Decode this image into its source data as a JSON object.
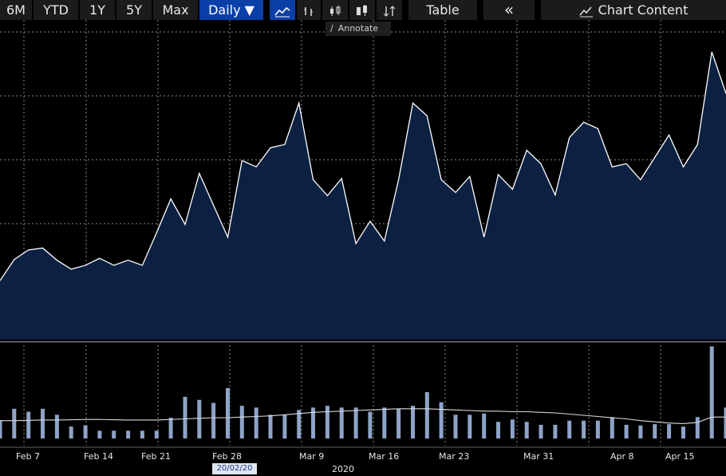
{
  "toolbar": {
    "range_6m": "6M",
    "range_ytd": "YTD",
    "range_1y": "1Y",
    "range_5y": "5Y",
    "range_max": "Max",
    "frequency": "Daily ▼",
    "table": "Table",
    "collapse": "«",
    "chart_content": "Chart Content",
    "annotate": "Annotate"
  },
  "icons": [
    "line-chart-icon",
    "bar-chart-icon",
    "candlestick-icon",
    "ohlc-icon",
    "sort-icon",
    "chart-content-icon",
    "pencil-icon"
  ],
  "colors": {
    "area_fill": "#0c2142",
    "line": "#ffffff",
    "volume_bar": "#8ea3c7",
    "selected": "#0a3fa8"
  },
  "chart_data": {
    "type": "area",
    "grid": true,
    "x_ticks": [
      "Feb 7",
      "Feb 14",
      "Feb 21",
      "Feb 28",
      "Mar 9",
      "Mar 16",
      "Mar 23",
      "Mar 31",
      "Apr 8",
      "Apr 15"
    ],
    "selected_date": "20/02/20",
    "year_label": "2020",
    "series": [
      {
        "values": [
          9.2,
          12.5,
          14.0,
          14.3,
          12.4,
          11.0,
          11.6,
          12.7,
          11.6,
          12.4,
          11.6,
          16.7,
          22.0,
          18.0,
          26.0,
          21.0,
          16.0,
          28.0,
          27.0,
          30.0,
          30.5,
          37.0,
          25.0,
          22.5,
          25.2,
          15.0,
          18.5,
          15.4,
          25.0,
          37.0,
          35.0,
          25.0,
          23.0,
          25.5,
          16.0,
          25.8,
          23.5,
          29.6,
          27.5,
          22.6,
          31.6,
          34.0,
          33.0,
          27.0,
          27.5,
          25.0,
          28.5,
          32.0,
          27.0,
          30.5,
          45.0,
          38.5
        ]
      },
      {
        "values": [
          3,
          5,
          4.5,
          5,
          4,
          2,
          2.2,
          1.3,
          1.3,
          1.3,
          1.3,
          1.3,
          3.5,
          7,
          6.5,
          6,
          8.5,
          5.5,
          5.2,
          4,
          4,
          4.8,
          5.2,
          5.5,
          5.2,
          5.2,
          4.5,
          5.2,
          5.0,
          5.5,
          7.8,
          6.1,
          4.0,
          4.0,
          4.2,
          2.8,
          3.2,
          2.8,
          2.3,
          2.3,
          3.0,
          3.0,
          3.0,
          3.6,
          2.3,
          2.2,
          2.4,
          2.4,
          2.0,
          3.6,
          15.5,
          5.2
        ]
      },
      {
        "values": [
          3.0,
          3.0,
          3.05,
          3.1,
          3.1,
          3.15,
          3.2,
          3.2,
          3.15,
          3.1,
          3.1,
          3.1,
          3.2,
          3.3,
          3.4,
          3.5,
          3.5,
          3.6,
          3.7,
          3.8,
          4.0,
          4.2,
          4.4,
          4.5,
          4.6,
          4.7,
          4.8,
          4.9,
          5.0,
          5.0,
          5.0,
          4.9,
          4.8,
          4.7,
          4.6,
          4.6,
          4.5,
          4.5,
          4.4,
          4.3,
          4.1,
          3.9,
          3.7,
          3.5,
          3.3,
          3.0,
          2.8,
          2.6,
          2.5,
          2.7,
          3.6,
          3.6
        ]
      }
    ]
  }
}
